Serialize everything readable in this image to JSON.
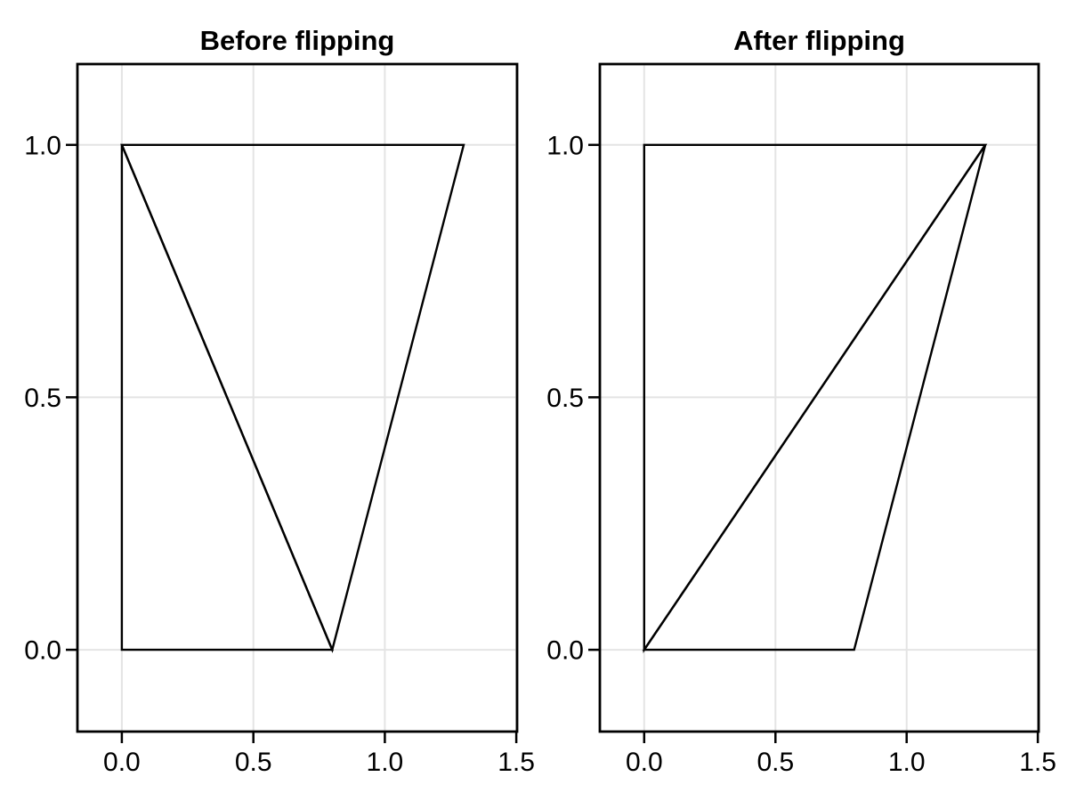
{
  "styles": {
    "background": "#ffffff",
    "line_color": "#000000",
    "box_color": "#000000",
    "grid_color": "#e4e4e4",
    "text_color": "#000000"
  },
  "chart_data": [
    {
      "type": "line",
      "title": "Before flipping",
      "xlabel": "",
      "ylabel": "",
      "grid": true,
      "legend": "none",
      "xlim": [
        -0.169,
        1.503
      ],
      "ylim": [
        -0.162,
        1.16
      ],
      "x_ticks": {
        "values": [
          0.0,
          0.5,
          1.0,
          1.5
        ],
        "labels": [
          "0.0",
          "0.5",
          "1.0",
          "1.5"
        ]
      },
      "y_ticks": {
        "values": [
          0.0,
          0.5,
          1.0
        ],
        "labels": [
          "0.0",
          "0.5",
          "1.0"
        ]
      },
      "quad_vertices": [
        [
          0.0,
          0.0
        ],
        [
          0.0,
          1.0
        ],
        [
          1.3,
          1.0
        ],
        [
          0.8,
          0.0
        ]
      ],
      "diagonal_edge": [
        [
          0.0,
          1.0
        ],
        [
          0.8,
          0.0
        ]
      ],
      "triangles": [
        [
          [
            0.0,
            0.0
          ],
          [
            0.0,
            1.0
          ],
          [
            0.8,
            0.0
          ]
        ],
        [
          [
            0.0,
            1.0
          ],
          [
            1.3,
            1.0
          ],
          [
            0.8,
            0.0
          ]
        ]
      ]
    },
    {
      "type": "line",
      "title": "After flipping",
      "xlabel": "",
      "ylabel": "",
      "grid": true,
      "legend": "none",
      "xlim": [
        -0.169,
        1.503
      ],
      "ylim": [
        -0.162,
        1.16
      ],
      "x_ticks": {
        "values": [
          0.0,
          0.5,
          1.0,
          1.5
        ],
        "labels": [
          "0.0",
          "0.5",
          "1.0",
          "1.5"
        ]
      },
      "y_ticks": {
        "values": [
          0.0,
          0.5,
          1.0
        ],
        "labels": [
          "0.0",
          "0.5",
          "1.0"
        ]
      },
      "quad_vertices": [
        [
          0.0,
          0.0
        ],
        [
          0.0,
          1.0
        ],
        [
          1.3,
          1.0
        ],
        [
          0.8,
          0.0
        ]
      ],
      "diagonal_edge": [
        [
          0.0,
          0.0
        ],
        [
          1.3,
          1.0
        ]
      ],
      "triangles": [
        [
          [
            0.0,
            0.0
          ],
          [
            0.0,
            1.0
          ],
          [
            1.3,
            1.0
          ]
        ],
        [
          [
            0.0,
            0.0
          ],
          [
            1.3,
            1.0
          ],
          [
            0.8,
            0.0
          ]
        ]
      ]
    }
  ]
}
